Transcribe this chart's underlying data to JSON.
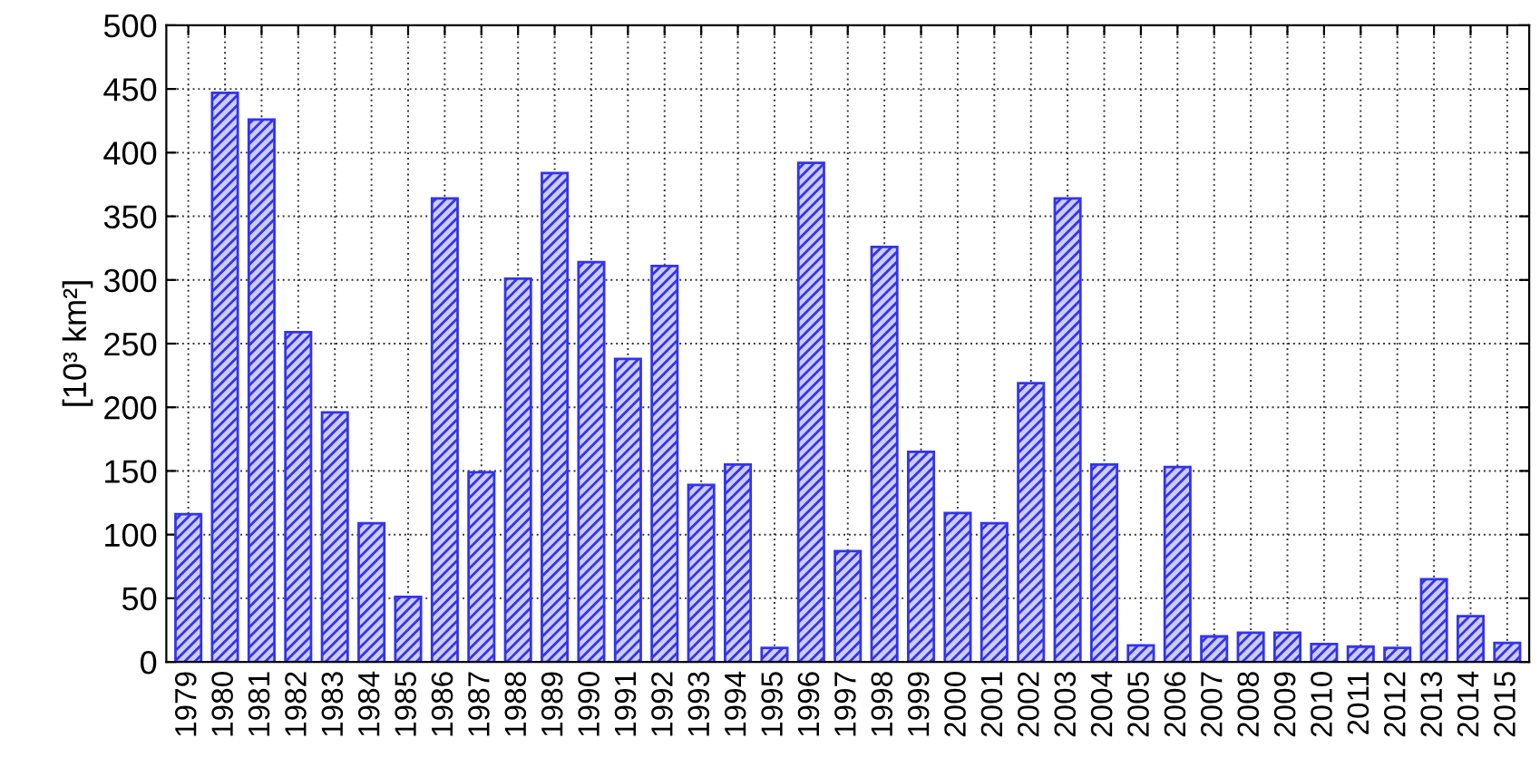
{
  "chart_data": {
    "type": "bar",
    "ylabel": "[10³ km²]",
    "categories": [
      "1979",
      "1980",
      "1981",
      "1982",
      "1983",
      "1984",
      "1985",
      "1986",
      "1987",
      "1988",
      "1989",
      "1990",
      "1991",
      "1992",
      "1993",
      "1994",
      "1995",
      "1996",
      "1997",
      "1998",
      "1999",
      "2000",
      "2001",
      "2002",
      "2003",
      "2004",
      "2005",
      "2006",
      "2007",
      "2008",
      "2009",
      "2010",
      "2011",
      "2012",
      "2013",
      "2014",
      "2015"
    ],
    "values": [
      116,
      447,
      426,
      259,
      196,
      109,
      51,
      364,
      149,
      301,
      384,
      314,
      238,
      311,
      139,
      155,
      11,
      392,
      87,
      326,
      165,
      117,
      109,
      219,
      364,
      155,
      13,
      153,
      20,
      23,
      23,
      14,
      12,
      11,
      65,
      36,
      15
    ],
    "color": "#3333ee",
    "ylim": [
      0,
      500
    ],
    "yticks": [
      0,
      50,
      100,
      150,
      200,
      250,
      300,
      350,
      400,
      450,
      500
    ],
    "grid": true
  }
}
